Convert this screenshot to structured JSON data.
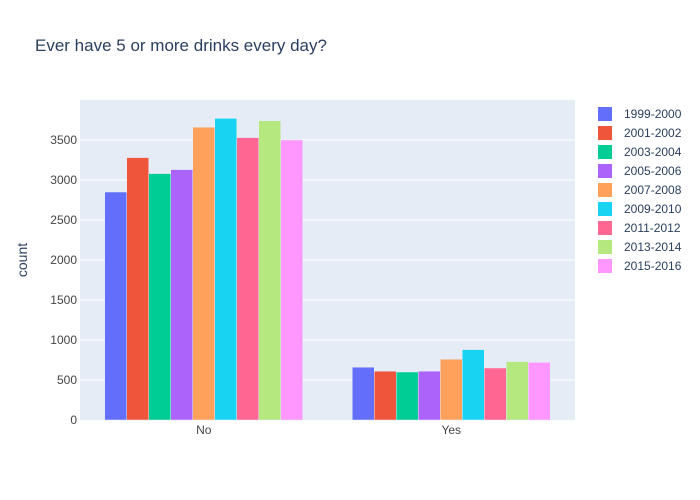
{
  "chart_data": {
    "type": "bar",
    "title": "Ever have 5 or more drinks every day?",
    "xlabel": "",
    "ylabel": "count",
    "categories": [
      "No",
      "Yes"
    ],
    "ylim": [
      0,
      4000
    ],
    "yticks": [
      0,
      500,
      1000,
      1500,
      2000,
      2500,
      3000,
      3500
    ],
    "grid": true,
    "legend_position": "right",
    "series": [
      {
        "name": "1999-2000",
        "color": "#636efa",
        "values": [
          2850,
          660
        ]
      },
      {
        "name": "2001-2002",
        "color": "#EF553B",
        "values": [
          3280,
          610
        ]
      },
      {
        "name": "2003-2004",
        "color": "#00cc96",
        "values": [
          3080,
          600
        ]
      },
      {
        "name": "2005-2006",
        "color": "#ab63fa",
        "values": [
          3130,
          610
        ]
      },
      {
        "name": "2007-2008",
        "color": "#FFA15A",
        "values": [
          3660,
          760
        ]
      },
      {
        "name": "2009-2010",
        "color": "#19d3f3",
        "values": [
          3770,
          880
        ]
      },
      {
        "name": "2011-2012",
        "color": "#FF6692",
        "values": [
          3530,
          650
        ]
      },
      {
        "name": "2013-2014",
        "color": "#B6E880",
        "values": [
          3740,
          730
        ]
      },
      {
        "name": "2015-2016",
        "color": "#FF97FF",
        "values": [
          3500,
          720
        ]
      }
    ]
  }
}
